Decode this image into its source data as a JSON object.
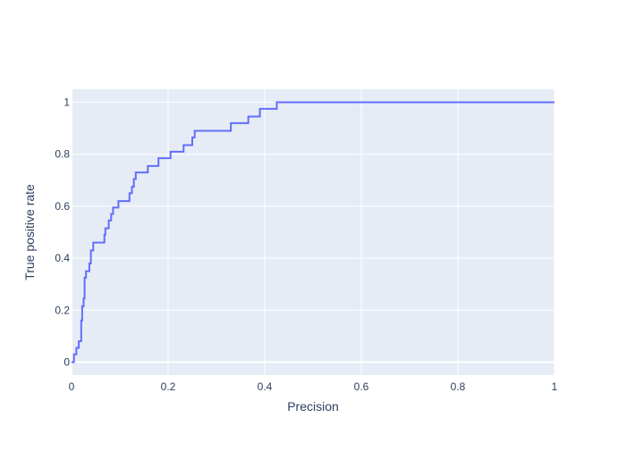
{
  "colors": {
    "plot_background": "#e5ecf6",
    "grid": "#ffffff",
    "line": "#636efa",
    "text": "#2a3f5f"
  },
  "chart_data": {
    "type": "line",
    "line_shape": "step",
    "xlabel": "Precision",
    "ylabel": "True positive rate",
    "xlim": [
      0,
      1
    ],
    "ylim": [
      -0.05,
      1.05
    ],
    "x_ticks": [
      0,
      0.2,
      0.4,
      0.6,
      0.8,
      1
    ],
    "x_tick_labels": [
      "0",
      "0.2",
      "0.4",
      "0.6",
      "0.8",
      "1"
    ],
    "y_ticks": [
      0,
      0.2,
      0.4,
      0.6,
      0.8,
      1
    ],
    "y_tick_labels": [
      "0",
      "0.2",
      "0.4",
      "0.6",
      "0.8",
      "1"
    ],
    "grid": true,
    "series": [
      {
        "points": [
          [
            0,
            0
          ],
          [
            0.005,
            0
          ],
          [
            0.005,
            0.03
          ],
          [
            0.01,
            0.03
          ],
          [
            0.01,
            0.055
          ],
          [
            0.015,
            0.055
          ],
          [
            0.015,
            0.08
          ],
          [
            0.02,
            0.08
          ],
          [
            0.02,
            0.16
          ],
          [
            0.022,
            0.16
          ],
          [
            0.022,
            0.215
          ],
          [
            0.025,
            0.215
          ],
          [
            0.025,
            0.245
          ],
          [
            0.027,
            0.245
          ],
          [
            0.027,
            0.325
          ],
          [
            0.03,
            0.325
          ],
          [
            0.03,
            0.35
          ],
          [
            0.037,
            0.35
          ],
          [
            0.037,
            0.38
          ],
          [
            0.04,
            0.38
          ],
          [
            0.04,
            0.43
          ],
          [
            0.045,
            0.43
          ],
          [
            0.045,
            0.46
          ],
          [
            0.068,
            0.46
          ],
          [
            0.068,
            0.49
          ],
          [
            0.07,
            0.49
          ],
          [
            0.07,
            0.515
          ],
          [
            0.077,
            0.515
          ],
          [
            0.077,
            0.545
          ],
          [
            0.082,
            0.545
          ],
          [
            0.082,
            0.57
          ],
          [
            0.086,
            0.57
          ],
          [
            0.086,
            0.595
          ],
          [
            0.097,
            0.595
          ],
          [
            0.097,
            0.62
          ],
          [
            0.12,
            0.62
          ],
          [
            0.12,
            0.65
          ],
          [
            0.125,
            0.65
          ],
          [
            0.125,
            0.675
          ],
          [
            0.129,
            0.675
          ],
          [
            0.129,
            0.705
          ],
          [
            0.133,
            0.705
          ],
          [
            0.133,
            0.73
          ],
          [
            0.158,
            0.73
          ],
          [
            0.158,
            0.755
          ],
          [
            0.18,
            0.755
          ],
          [
            0.18,
            0.785
          ],
          [
            0.205,
            0.785
          ],
          [
            0.205,
            0.81
          ],
          [
            0.232,
            0.81
          ],
          [
            0.232,
            0.835
          ],
          [
            0.25,
            0.835
          ],
          [
            0.25,
            0.865
          ],
          [
            0.255,
            0.865
          ],
          [
            0.255,
            0.89
          ],
          [
            0.33,
            0.89
          ],
          [
            0.33,
            0.92
          ],
          [
            0.366,
            0.92
          ],
          [
            0.366,
            0.945
          ],
          [
            0.39,
            0.945
          ],
          [
            0.39,
            0.975
          ],
          [
            0.425,
            0.975
          ],
          [
            0.425,
            1.0
          ],
          [
            1.0,
            1.0
          ]
        ]
      }
    ]
  }
}
